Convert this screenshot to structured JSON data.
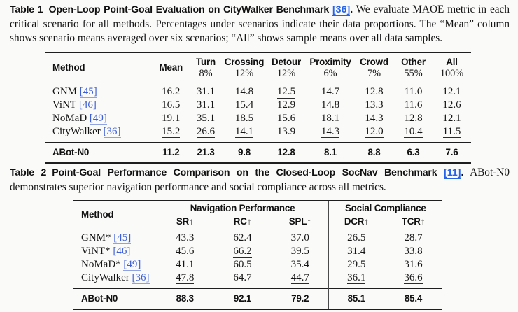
{
  "colors": {
    "background": "#fafaf9",
    "caption_link_blue": "#2563eb",
    "table_link_blue": "#3c5fd8",
    "rule_black": "#1e1e1e",
    "text": "#161616"
  },
  "caption1": {
    "tag": "Table 1",
    "title": "Open-Loop Point-Goal Evaluation on CityWalker Benchmark",
    "ref": "[36]",
    "period": ".",
    "body": "We evaluate MAOE metric in each critical scenario for all methods. Percentages under scenarios indicate their data proportions. The “Mean” column shows scenario means averaged over six scenarios; “All” shows sample means over all data samples."
  },
  "table1": {
    "header": {
      "cols": [
        {
          "label": "Method"
        },
        {
          "label": "Mean"
        },
        {
          "label": "Turn",
          "pct": "8%"
        },
        {
          "label": "Crossing",
          "pct": "12%"
        },
        {
          "label": "Detour",
          "pct": "12%"
        },
        {
          "label": "Proximity",
          "pct": "6%"
        },
        {
          "label": "Crowd",
          "pct": "7%"
        },
        {
          "label": "Other",
          "pct": "55%"
        },
        {
          "label": "All",
          "pct": "100%"
        }
      ]
    },
    "rows": [
      {
        "method": "GNM",
        "ref": "[45]",
        "values": [
          "16.2",
          "31.1",
          "14.8",
          "12.5",
          "14.7",
          "12.8",
          "11.0",
          "12.1"
        ],
        "underline": [
          false,
          false,
          false,
          true,
          false,
          false,
          false,
          false
        ]
      },
      {
        "method": "ViNT",
        "ref": "[46]",
        "values": [
          "16.5",
          "31.1",
          "15.4",
          "12.9",
          "14.8",
          "13.3",
          "11.6",
          "12.6"
        ],
        "underline": [
          false,
          false,
          false,
          false,
          false,
          false,
          false,
          false
        ]
      },
      {
        "method": "NoMaD",
        "ref": "[49]",
        "values": [
          "19.1",
          "35.1",
          "18.5",
          "15.6",
          "18.1",
          "14.3",
          "12.8",
          "12.1"
        ],
        "underline": [
          false,
          false,
          false,
          false,
          false,
          false,
          false,
          false
        ]
      },
      {
        "method": "CityWalker",
        "ref": "[36]",
        "values": [
          "15.2",
          "26.6",
          "14.1",
          "13.9",
          "14.3",
          "12.0",
          "10.4",
          "11.5"
        ],
        "underline": [
          true,
          true,
          true,
          false,
          true,
          true,
          true,
          true
        ]
      }
    ],
    "final": {
      "method": "ABot-N0",
      "values": [
        "11.2",
        "21.3",
        "9.8",
        "12.8",
        "8.1",
        "8.8",
        "6.3",
        "7.6"
      ]
    }
  },
  "caption2": {
    "tag": "Table 2",
    "title": "Point-Goal Performance Comparison on the Closed-Loop SocNav Benchmark",
    "ref": "[11]",
    "period": ".",
    "body": "ABot-N0 demonstrates superior navigation performance and social compliance across all metrics."
  },
  "table2": {
    "header": {
      "method": "Method",
      "groups": [
        "Navigation Performance",
        "Social Compliance"
      ],
      "cols": [
        "SR↑",
        "RC↑",
        "SPL↑",
        "DCR↑",
        "TCR↑"
      ]
    },
    "rows": [
      {
        "method": "GNM*",
        "ref": "[45]",
        "values": [
          "43.3",
          "62.4",
          "37.0",
          "26.5",
          "28.7"
        ],
        "underline": [
          false,
          false,
          false,
          false,
          false
        ]
      },
      {
        "method": "ViNT*",
        "ref": "[46]",
        "values": [
          "45.6",
          "66.2",
          "39.5",
          "31.4",
          "33.8"
        ],
        "underline": [
          false,
          true,
          false,
          false,
          false
        ]
      },
      {
        "method": "NoMaD*",
        "ref": "[49]",
        "values": [
          "41.1",
          "60.5",
          "35.4",
          "29.5",
          "31.6"
        ],
        "underline": [
          false,
          false,
          false,
          false,
          false
        ]
      },
      {
        "method": "CityWalker",
        "ref": "[36]",
        "values": [
          "47.8",
          "64.7",
          "44.7",
          "36.1",
          "36.6"
        ],
        "underline": [
          true,
          false,
          true,
          true,
          true
        ]
      }
    ],
    "final": {
      "method": "ABot-N0",
      "values": [
        "88.3",
        "92.1",
        "79.2",
        "85.1",
        "85.4"
      ]
    }
  }
}
